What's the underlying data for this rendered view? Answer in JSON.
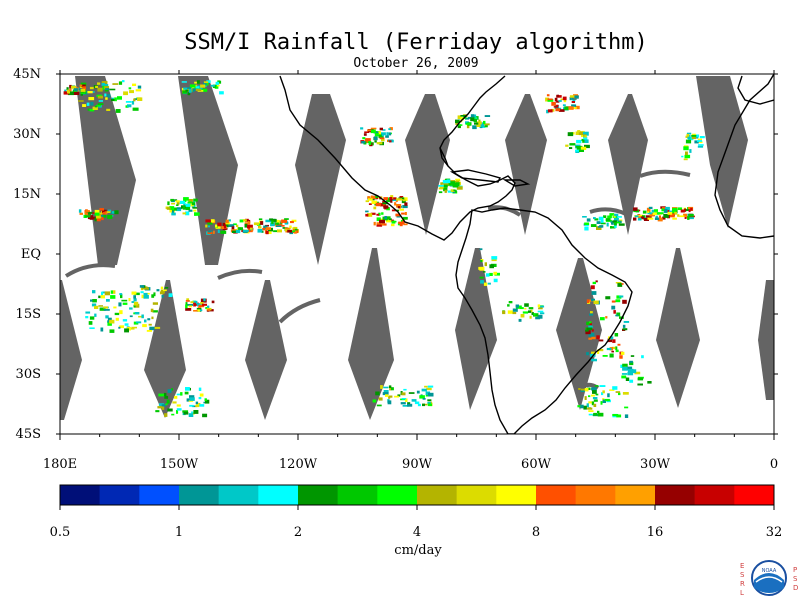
{
  "title": "SSM/I Rainfall (Ferriday algorithm)",
  "date": "October 26, 2009",
  "lat_labels": [
    "45N",
    "30N",
    "15N",
    "EQ",
    "15S",
    "30S",
    "45S"
  ],
  "lon_labels": [
    "180E",
    "150W",
    "120W",
    "90W",
    "60W",
    "30W",
    "0"
  ],
  "map_extent": {
    "lon_range": [
      -180,
      0
    ],
    "lat_range": [
      -45,
      45
    ]
  },
  "colorbar": {
    "colors": [
      "#000f78",
      "#0028b4",
      "#0050ff",
      "#009696",
      "#00c8c8",
      "#00ffff",
      "#009600",
      "#00c800",
      "#00ff00",
      "#b4b400",
      "#dcdc00",
      "#ffff00",
      "#ff5000",
      "#ff7800",
      "#ffa000",
      "#960000",
      "#c80000",
      "#ff0000"
    ],
    "tick_labels": [
      "0.5",
      "1",
      "2",
      "4",
      "8",
      "16",
      "32"
    ],
    "unit": "cm/day"
  },
  "gap_color": "#646464",
  "logo": {
    "left_letters": [
      "E",
      "S",
      "R",
      "L"
    ],
    "right_letters": [
      "P",
      "S",
      "D"
    ],
    "center_text": "NOAA"
  }
}
